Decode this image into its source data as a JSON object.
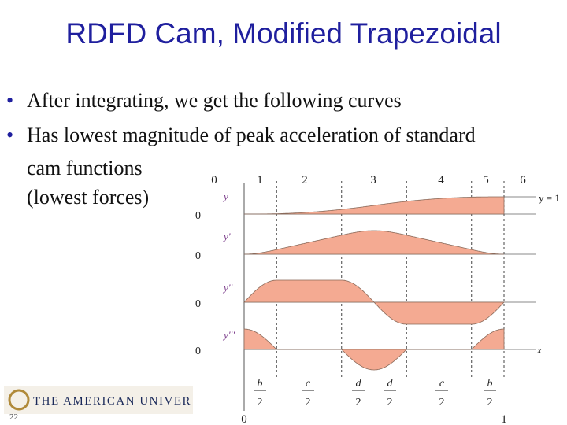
{
  "title": "RDFD Cam, Modified Trapezoidal",
  "bullets": [
    "After integrating, we get the following curves",
    "Has lowest magnitude of peak acceleration  of standard cam functions"
  ],
  "note": "(lowest forces)",
  "figure": {
    "top_labels": [
      "0",
      "1",
      "2",
      "3",
      "4",
      "5",
      "6"
    ],
    "curve_labels": [
      "y",
      "y'",
      "y''",
      "y'''"
    ],
    "zero_labels": [
      "0",
      "0",
      "0",
      "0"
    ],
    "end_label": "y = 1",
    "x_label": "x",
    "fractions": [
      {
        "num": "b",
        "den": "2"
      },
      {
        "num": "c",
        "den": "2"
      },
      {
        "num": "d",
        "den": "2"
      },
      {
        "num": "d",
        "den": "2"
      },
      {
        "num": "c",
        "den": "2"
      },
      {
        "num": "b",
        "den": "2"
      }
    ],
    "bottom_labels": [
      "0",
      "1"
    ]
  },
  "footer": {
    "logo": "THE AMERICAN UNIVER",
    "slide_number": "22"
  }
}
